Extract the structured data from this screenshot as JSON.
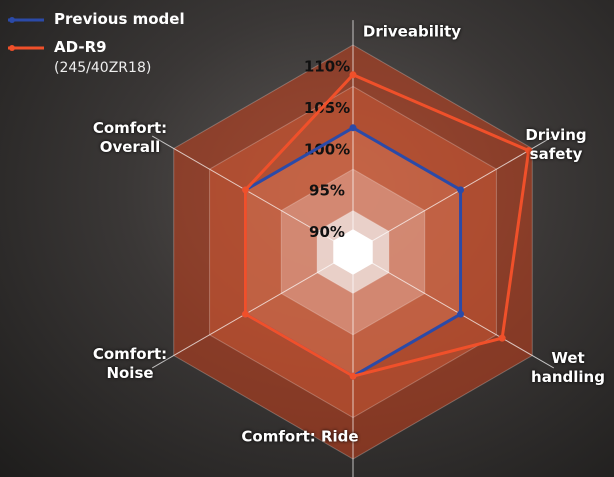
{
  "chart_data": {
    "type": "radar",
    "categories": [
      "Driveability",
      "Driving\nsafety",
      "Wet\nhandling",
      "Comfort: Ride",
      "Comfort:\nNoise",
      "Comfort:\nOverall"
    ],
    "rlim": [
      85,
      110
    ],
    "rticks": [
      {
        "value": 90,
        "label": "90%"
      },
      {
        "value": 95,
        "label": "95%"
      },
      {
        "value": 100,
        "label": "100%"
      },
      {
        "value": 105,
        "label": "105%"
      },
      {
        "value": 110,
        "label": "110%"
      }
    ],
    "series": [
      {
        "name": "Previous model",
        "color": "#2b4aa8",
        "values": [
          100,
          100,
          100,
          100,
          100,
          100
        ]
      },
      {
        "name": "AD-R9",
        "subtitle": "(245/40ZR18)",
        "color": "#f0502a",
        "values": [
          106.4,
          109.5,
          105.8,
          100,
          100,
          100
        ]
      }
    ]
  }
}
